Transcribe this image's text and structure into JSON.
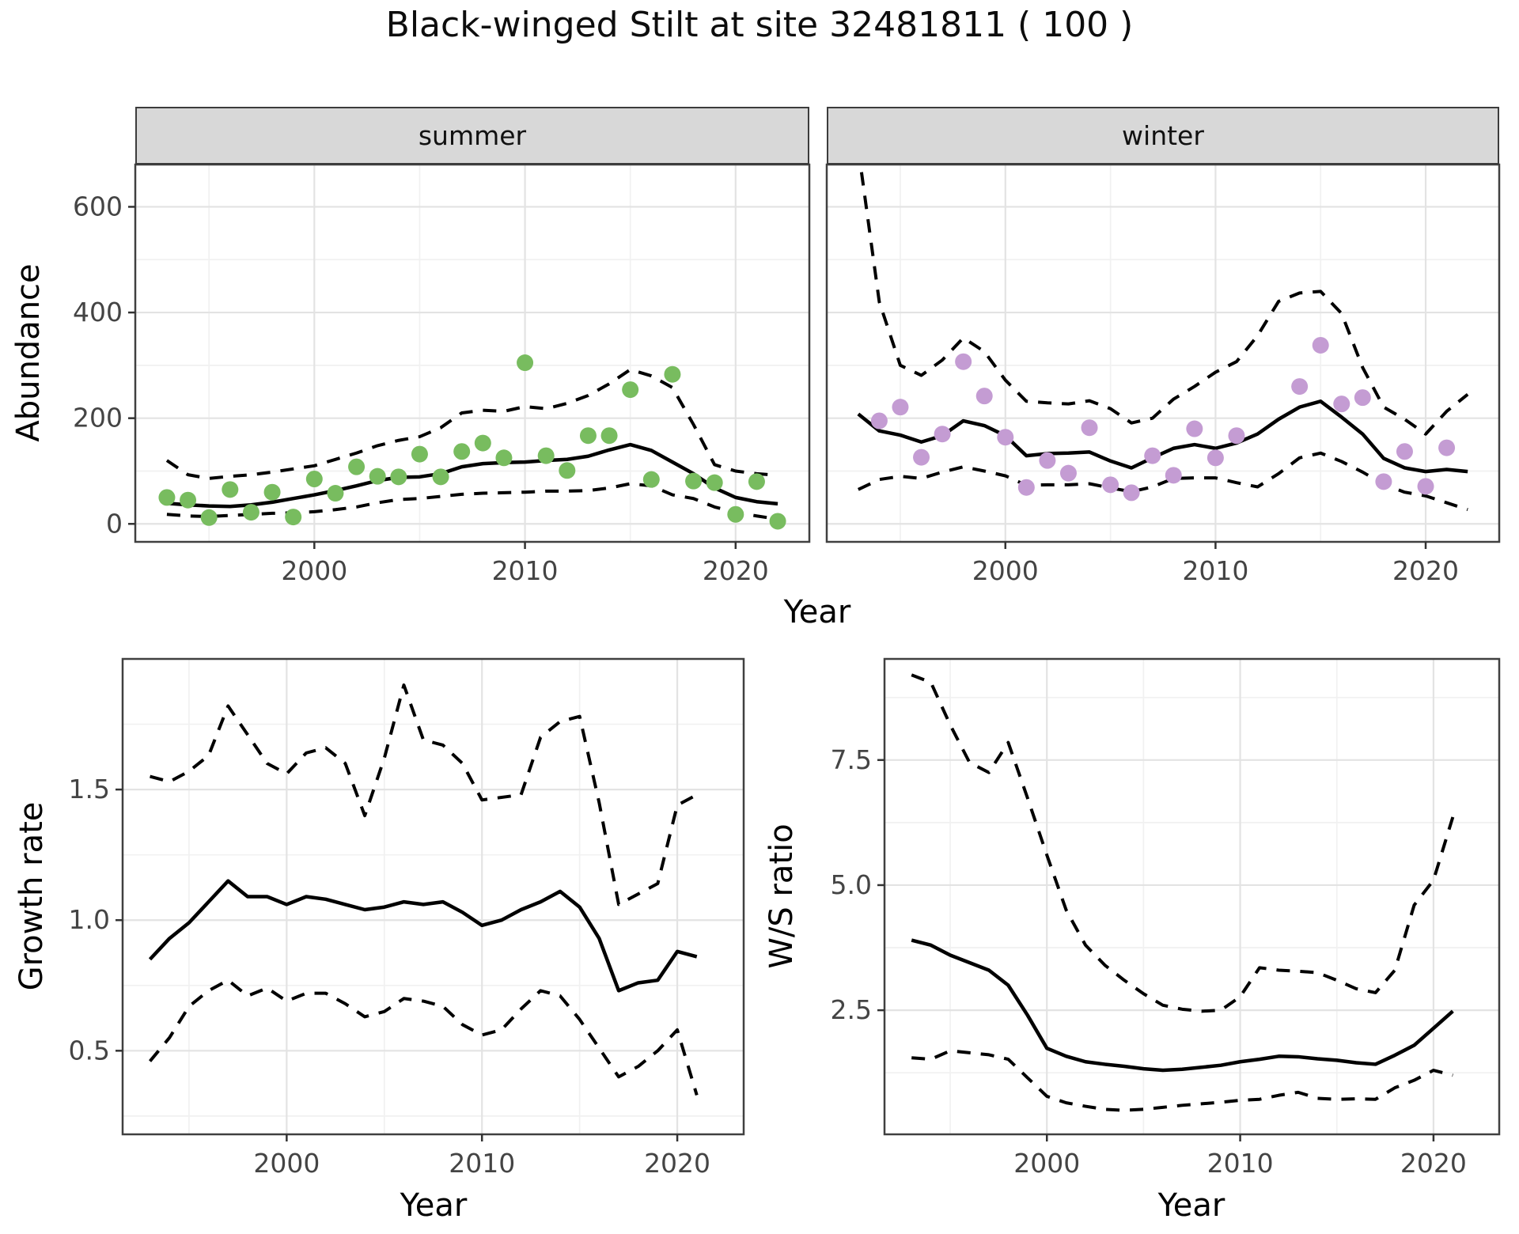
{
  "title": "Black-winged Stilt at site 32481811 ( 100 )",
  "colors": {
    "summer_point": "#78bc5f",
    "winter_point": "#c49cd3",
    "line": "#000000",
    "grid_major": "#e3e3e3",
    "grid_minor": "#f1f1f1",
    "panel_bg": "#ffffff",
    "strip_bg": "#d8d8d8",
    "border": "#404040",
    "tick": "#333333",
    "axis_text": "#444444"
  },
  "chart_data": [
    {
      "panel": "summer",
      "type": "line",
      "facet_label": "summer",
      "xlabel": "Year",
      "ylabel": "Abundance",
      "xlim": [
        1991.5,
        2023.5
      ],
      "ylim": [
        -34,
        680
      ],
      "x_ticks": [
        2000,
        2010,
        2020
      ],
      "x_tick_labels": [
        "2000",
        "2010",
        "2020"
      ],
      "x_minor": [
        1995,
        2005,
        2015
      ],
      "y_ticks": [
        0,
        200,
        400,
        600
      ],
      "y_tick_labels": [
        "0",
        "200",
        "400",
        "600"
      ],
      "y_minor": [
        100,
        300,
        500,
        700
      ],
      "show_y_axis": true,
      "x": [
        1993,
        1994,
        1995,
        1996,
        1997,
        1998,
        1999,
        2000,
        2001,
        2002,
        2003,
        2004,
        2005,
        2006,
        2007,
        2008,
        2009,
        2010,
        2011,
        2012,
        2013,
        2014,
        2015,
        2016,
        2017,
        2018,
        2019,
        2020,
        2021,
        2022
      ],
      "series": [
        {
          "name": "upper_ci",
          "style": "dashed",
          "values": [
            120,
            93,
            86,
            90,
            93,
            98,
            104,
            110,
            122,
            134,
            148,
            158,
            165,
            182,
            210,
            215,
            213,
            222,
            218,
            228,
            243,
            265,
            292,
            280,
            258,
            188,
            112,
            100,
            95,
            92
          ]
        },
        {
          "name": "lower_ci",
          "style": "dashed",
          "values": [
            18,
            15,
            14,
            16,
            18,
            20,
            21,
            23,
            27,
            32,
            40,
            46,
            48,
            52,
            56,
            58,
            59,
            60,
            62,
            62,
            63,
            68,
            76,
            72,
            55,
            48,
            32,
            22,
            15,
            9
          ]
        },
        {
          "name": "median",
          "style": "solid",
          "values": [
            39,
            36,
            34,
            33,
            36,
            41,
            48,
            55,
            63,
            72,
            82,
            88,
            89,
            95,
            108,
            114,
            116,
            117,
            120,
            122,
            128,
            140,
            150,
            139,
            117,
            95,
            68,
            50,
            42,
            38
          ]
        },
        {
          "name": "observed",
          "style": "points",
          "color": "#78bc5f",
          "values": [
            50,
            45,
            12,
            65,
            22,
            60,
            13,
            85,
            58,
            108,
            90,
            89,
            132,
            89,
            137,
            153,
            125,
            305,
            129,
            101,
            167,
            167,
            254,
            84,
            283,
            81,
            78,
            18,
            80,
            5
          ]
        }
      ]
    },
    {
      "panel": "winter",
      "type": "line",
      "facet_label": "winter",
      "xlabel": "Year",
      "ylabel": "Abundance",
      "xlim": [
        1991.5,
        2023.5
      ],
      "ylim": [
        -34,
        680
      ],
      "x_ticks": [
        2000,
        2010,
        2020
      ],
      "x_tick_labels": [
        "2000",
        "2010",
        "2020"
      ],
      "x_minor": [
        1995,
        2005,
        2015
      ],
      "y_ticks": [
        0,
        200,
        400,
        600
      ],
      "y_tick_labels": [
        "0",
        "200",
        "400",
        "600"
      ],
      "y_minor": [
        100,
        300,
        500,
        700
      ],
      "show_y_axis": false,
      "x": [
        1993,
        1994,
        1995,
        1996,
        1997,
        1998,
        1999,
        2000,
        2001,
        2002,
        2003,
        2004,
        2005,
        2006,
        2007,
        2008,
        2009,
        2010,
        2011,
        2012,
        2013,
        2014,
        2015,
        2016,
        2017,
        2018,
        2019,
        2020,
        2021,
        2022
      ],
      "series": [
        {
          "name": "upper_ci",
          "style": "dashed",
          "values": [
            710,
            420,
            300,
            281,
            310,
            352,
            326,
            272,
            232,
            229,
            227,
            233,
            218,
            191,
            200,
            236,
            260,
            287,
            307,
            356,
            421,
            437,
            440,
            398,
            296,
            221,
            198,
            170,
            213,
            245
          ]
        },
        {
          "name": "lower_ci",
          "style": "dashed",
          "values": [
            65,
            84,
            90,
            86,
            98,
            108,
            100,
            91,
            73,
            74,
            74,
            76,
            68,
            61,
            70,
            86,
            87,
            87,
            78,
            70,
            95,
            125,
            134,
            118,
            98,
            75,
            60,
            53,
            40,
            27
          ]
        },
        {
          "name": "median",
          "style": "solid",
          "values": [
            208,
            176,
            168,
            155,
            167,
            195,
            186,
            167,
            129,
            133,
            134,
            136,
            119,
            106,
            125,
            143,
            150,
            143,
            153,
            170,
            198,
            221,
            232,
            202,
            170,
            124,
            106,
            99,
            103,
            99
          ]
        },
        {
          "name": "observed",
          "style": "points",
          "color": "#c49cd3",
          "values": [
            null,
            195,
            221,
            126,
            170,
            307,
            242,
            164,
            69,
            120,
            96,
            182,
            74,
            59,
            129,
            92,
            180,
            125,
            167,
            null,
            null,
            260,
            338,
            227,
            239,
            80,
            137,
            71,
            144,
            null
          ]
        }
      ]
    },
    {
      "panel": "growth",
      "type": "line",
      "facet_label": "",
      "xlabel": "Year",
      "ylabel": "Growth rate",
      "xlim": [
        1991.6,
        2023.4
      ],
      "ylim": [
        0.18,
        2.0
      ],
      "x_ticks": [
        2000,
        2010,
        2020
      ],
      "x_tick_labels": [
        "2000",
        "2010",
        "2020"
      ],
      "x_minor": [
        1995,
        2005,
        2015
      ],
      "y_ticks": [
        0.5,
        1.0,
        1.5
      ],
      "y_tick_labels": [
        "0.5",
        "1.0",
        "1.5"
      ],
      "y_minor": [
        0.25,
        0.75,
        1.25,
        1.75
      ],
      "show_y_axis": true,
      "x": [
        1993,
        1994,
        1995,
        1996,
        1997,
        1998,
        1999,
        2000,
        2001,
        2002,
        2003,
        2004,
        2005,
        2006,
        2007,
        2008,
        2009,
        2010,
        2011,
        2012,
        2013,
        2014,
        2015,
        2016,
        2017,
        2018,
        2019,
        2020,
        2021
      ],
      "series": [
        {
          "name": "upper_ci",
          "style": "dashed",
          "values": [
            1.55,
            1.53,
            1.57,
            1.63,
            1.82,
            1.71,
            1.6,
            1.56,
            1.64,
            1.66,
            1.6,
            1.4,
            1.62,
            1.9,
            1.69,
            1.67,
            1.6,
            1.46,
            1.47,
            1.48,
            1.7,
            1.76,
            1.78,
            1.45,
            1.06,
            1.1,
            1.14,
            1.44,
            1.48
          ]
        },
        {
          "name": "lower_ci",
          "style": "dashed",
          "values": [
            0.46,
            0.55,
            0.67,
            0.73,
            0.77,
            0.71,
            0.74,
            0.69,
            0.72,
            0.72,
            0.68,
            0.63,
            0.65,
            0.7,
            0.69,
            0.67,
            0.6,
            0.56,
            0.58,
            0.66,
            0.73,
            0.71,
            0.62,
            0.51,
            0.4,
            0.44,
            0.5,
            0.58,
            0.33
          ]
        },
        {
          "name": "median",
          "style": "solid",
          "values": [
            0.85,
            0.93,
            0.99,
            1.07,
            1.15,
            1.09,
            1.09,
            1.06,
            1.09,
            1.08,
            1.06,
            1.04,
            1.05,
            1.07,
            1.06,
            1.07,
            1.03,
            0.98,
            1.0,
            1.04,
            1.07,
            1.11,
            1.05,
            0.93,
            0.73,
            0.76,
            0.77,
            0.88,
            0.86
          ]
        }
      ]
    },
    {
      "panel": "ws",
      "type": "line",
      "facet_label": "",
      "xlabel": "Year",
      "ylabel": "W/S ratio",
      "xlim": [
        1991.6,
        2023.4
      ],
      "ylim": [
        0.02,
        9.52
      ],
      "x_ticks": [
        2000,
        2010,
        2020
      ],
      "x_tick_labels": [
        "2000",
        "2010",
        "2020"
      ],
      "x_minor": [
        1995,
        2005,
        2015
      ],
      "y_ticks": [
        2.5,
        5.0,
        7.5
      ],
      "y_tick_labels": [
        "2.5",
        "5.0",
        "7.5"
      ],
      "y_minor": [
        1.25,
        3.75,
        6.25,
        8.75
      ],
      "show_y_axis": true,
      "x": [
        1993,
        1994,
        1995,
        1996,
        1997,
        1998,
        1999,
        2000,
        2001,
        2002,
        2003,
        2004,
        2005,
        2006,
        2007,
        2008,
        2009,
        2010,
        2011,
        2012,
        2013,
        2014,
        2015,
        2016,
        2017,
        2018,
        2019,
        2020,
        2021
      ],
      "series": [
        {
          "name": "upper_ci",
          "style": "dashed",
          "values": [
            9.2,
            9.05,
            8.2,
            7.45,
            7.25,
            7.85,
            6.74,
            5.6,
            4.5,
            3.8,
            3.4,
            3.1,
            2.83,
            2.6,
            2.52,
            2.48,
            2.5,
            2.77,
            3.35,
            3.3,
            3.28,
            3.25,
            3.1,
            2.93,
            2.85,
            3.3,
            4.6,
            5.1,
            6.36
          ]
        },
        {
          "name": "lower_ci",
          "style": "dashed",
          "values": [
            1.55,
            1.52,
            1.69,
            1.65,
            1.61,
            1.52,
            1.15,
            0.78,
            0.65,
            0.58,
            0.52,
            0.5,
            0.52,
            0.56,
            0.6,
            0.63,
            0.66,
            0.7,
            0.72,
            0.8,
            0.86,
            0.74,
            0.72,
            0.73,
            0.72,
            0.95,
            1.1,
            1.3,
            1.2
          ]
        },
        {
          "name": "median",
          "style": "solid",
          "values": [
            3.9,
            3.8,
            3.6,
            3.45,
            3.3,
            3.0,
            2.4,
            1.74,
            1.58,
            1.47,
            1.42,
            1.38,
            1.33,
            1.3,
            1.32,
            1.36,
            1.4,
            1.47,
            1.52,
            1.58,
            1.57,
            1.53,
            1.5,
            1.45,
            1.42,
            1.6,
            1.8,
            2.14,
            2.48
          ]
        }
      ]
    }
  ]
}
